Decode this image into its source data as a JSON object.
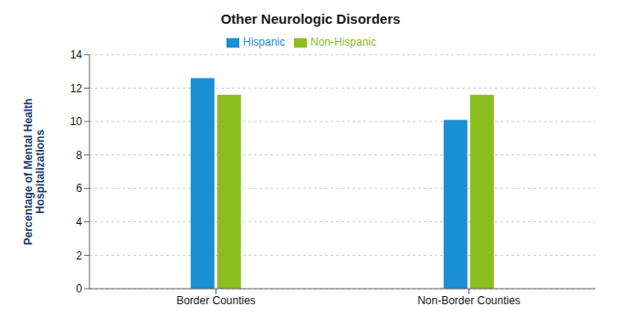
{
  "chart_data": {
    "type": "bar",
    "title": "Other Neurologic Disorders",
    "categories": [
      "Border Counties",
      "Non-Border Counties"
    ],
    "series": [
      {
        "name": "Hispanic",
        "color": "#1B8FD4",
        "values": [
          12.6,
          10.1
        ]
      },
      {
        "name": "Non-Hispanic",
        "color": "#8BBD1E",
        "values": [
          11.6,
          11.6
        ]
      }
    ],
    "ylabel": "Percentage of Mental Health\nHospitalizations",
    "ylim": [
      0,
      14
    ],
    "yticks": [
      0,
      2,
      4,
      6,
      8,
      10,
      12,
      14
    ],
    "grid": true,
    "legend": "top"
  }
}
